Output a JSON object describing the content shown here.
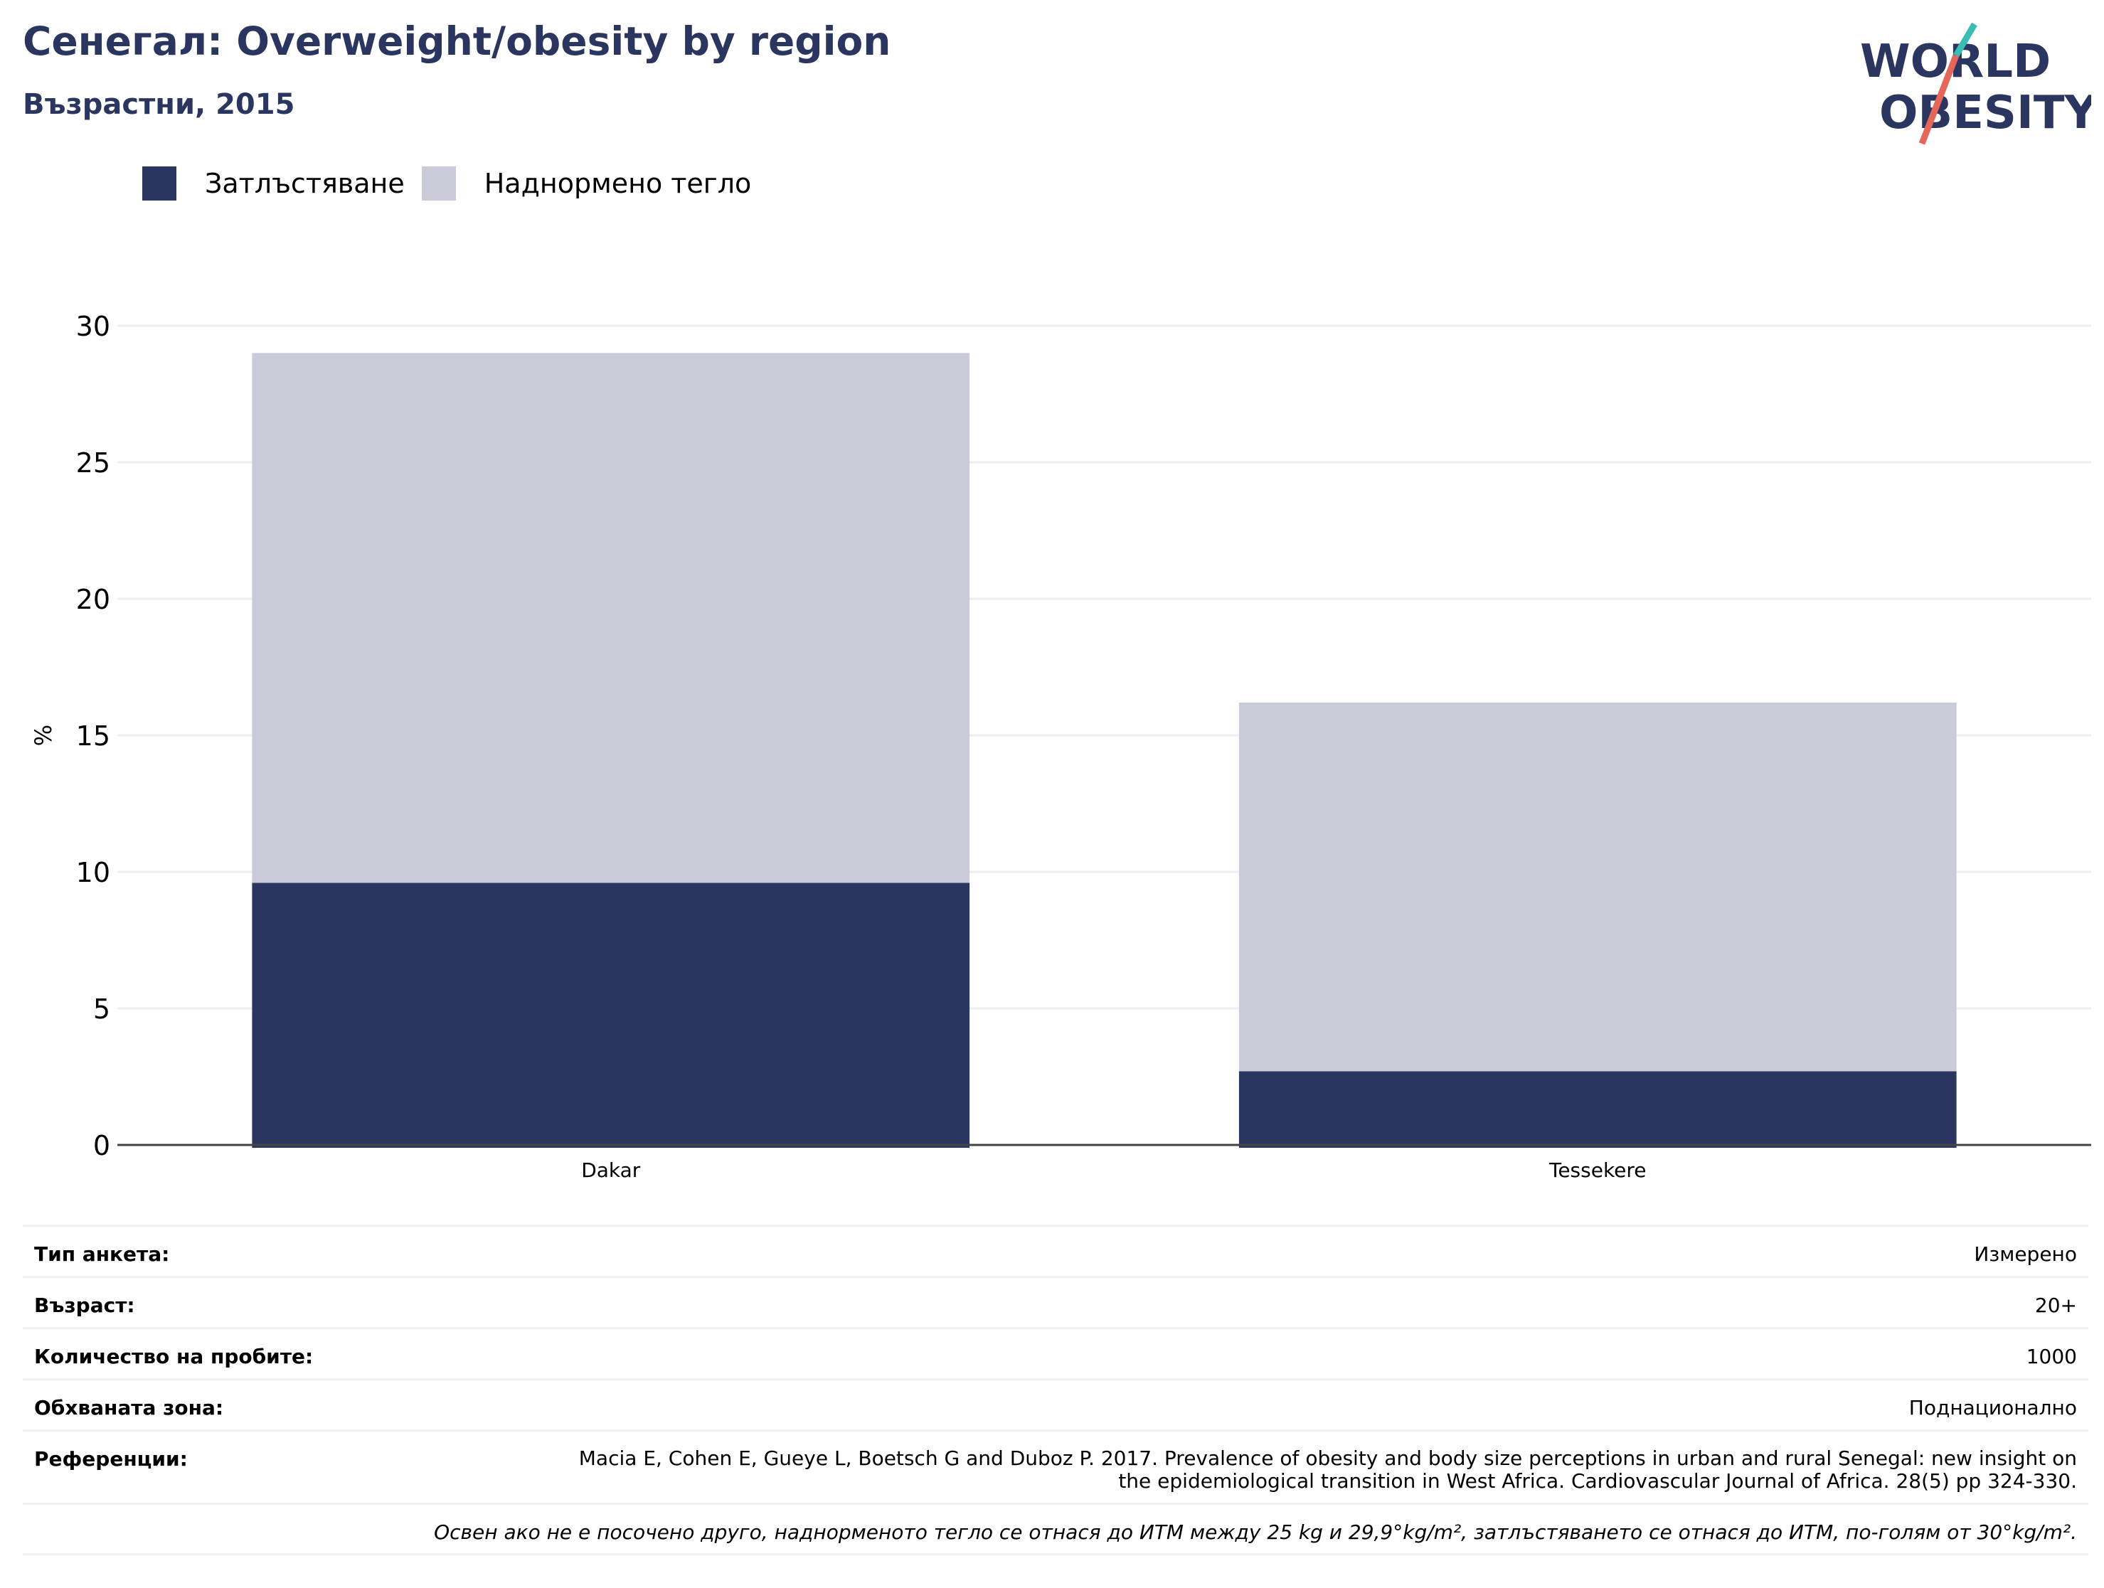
{
  "header": {
    "title": "Сенегал: Overweight/obesity by region",
    "subtitle": "Възрастни, 2015"
  },
  "logo": {
    "line1": "WORLD",
    "line2": "OBESITY"
  },
  "colors": {
    "obesity": "#2a365f",
    "overweight": "#c9ccd8",
    "title": "#2a365f",
    "logo_teal": "#3bbcb4",
    "logo_red": "#e4675a"
  },
  "chart_data": {
    "type": "bar",
    "stacked": true,
    "categories": [
      "Dakar",
      "Tessekere"
    ],
    "series": [
      {
        "name": "Затлъстяване",
        "values": [
          9.6,
          2.7
        ]
      },
      {
        "name": "Наднормено тегло",
        "values": [
          19.4,
          13.5
        ]
      }
    ],
    "ylabel": "%",
    "ylim": [
      0,
      30
    ],
    "yticks": [
      0,
      5,
      10,
      15,
      20,
      25,
      30
    ],
    "grid": true,
    "legend": "top-left"
  },
  "meta": {
    "rows": [
      {
        "key": "Тип анкета:",
        "value": "Измерено"
      },
      {
        "key": "Възраст:",
        "value": "20+"
      },
      {
        "key": "Количество на пробите:",
        "value": "1000"
      },
      {
        "key": "Обхваната зона:",
        "value": "Поднационално"
      }
    ],
    "reference_key": "Референции:",
    "reference_value": "Macia E, Cohen E, Gueye L, Boetsch G and Duboz P. 2017. Prevalence of obesity and body size perceptions in urban and rural Senegal: new insight on the epidemiological transition in West Africa. Cardiovascular Journal of Africa. 28(5) pp 324-330.",
    "note": "Освен ако не е посочено друго, наднорменото тегло се отнася до ИТМ между 25 kg и 29,9°kg/m², затлъстяването се отнася до ИТМ, по-голям от 30°kg/m²."
  }
}
